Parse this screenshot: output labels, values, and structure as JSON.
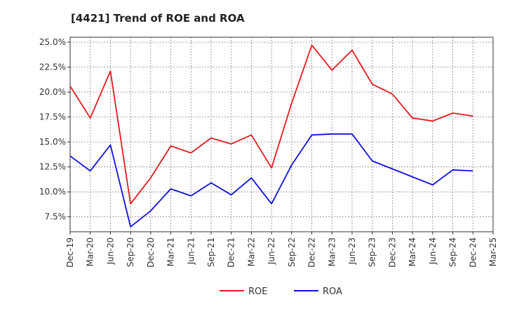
{
  "chart_data": {
    "type": "line",
    "title": "[4421]  Trend of ROE and ROA",
    "xlabel": "",
    "ylabel": "",
    "categories": [
      "Dec-19",
      "Mar-20",
      "Jun-20",
      "Sep-20",
      "Dec-20",
      "Mar-21",
      "Jun-21",
      "Sep-21",
      "Dec-21",
      "Mar-22",
      "Jun-22",
      "Sep-22",
      "Dec-22",
      "Mar-23",
      "Jun-23",
      "Sep-23",
      "Dec-23",
      "Mar-24",
      "Jun-24",
      "Sep-24",
      "Dec-24",
      "Mar-25"
    ],
    "y_ticks": [
      "7.5%",
      "10.0%",
      "12.5%",
      "15.0%",
      "17.5%",
      "20.0%",
      "22.5%",
      "25.0%"
    ],
    "ylim": [
      6.0,
      25.5
    ],
    "grid": true,
    "legend_position": "bottom-center",
    "series": [
      {
        "name": "ROE",
        "color": "#e8191f",
        "values": [
          20.6,
          17.4,
          22.1,
          8.8,
          11.4,
          14.6,
          13.9,
          15.4,
          14.8,
          15.7,
          12.4,
          18.9,
          24.7,
          22.2,
          24.2,
          20.8,
          19.8,
          17.4,
          17.1,
          17.9,
          17.6,
          null
        ]
      },
      {
        "name": "ROA",
        "color": "#1111dd",
        "values": [
          13.6,
          12.1,
          14.7,
          6.5,
          8.1,
          10.3,
          9.6,
          10.9,
          9.7,
          11.4,
          8.8,
          12.7,
          15.7,
          15.8,
          15.8,
          13.1,
          12.3,
          11.5,
          10.7,
          12.2,
          12.1,
          null
        ]
      }
    ]
  }
}
